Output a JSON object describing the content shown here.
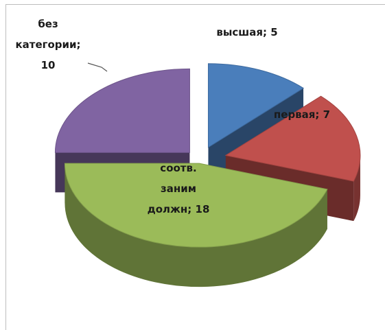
{
  "chart_data": {
    "type": "pie",
    "three_d": true,
    "exploded": true,
    "categories": [
      "высшая",
      "первая",
      "соотв. заним должн",
      "без категории"
    ],
    "values": [
      5,
      7,
      18,
      10
    ],
    "colors": [
      "#4a7ebb",
      "#c0504d",
      "#9bbb59",
      "#8064a2"
    ],
    "labels": [
      [
        "высшая; 5"
      ],
      [
        "первая; 7"
      ],
      [
        "соотв.",
        "заним",
        "должн; 18"
      ],
      [
        "без",
        "категории;",
        "10"
      ]
    ],
    "legend": "none",
    "grid": false
  }
}
